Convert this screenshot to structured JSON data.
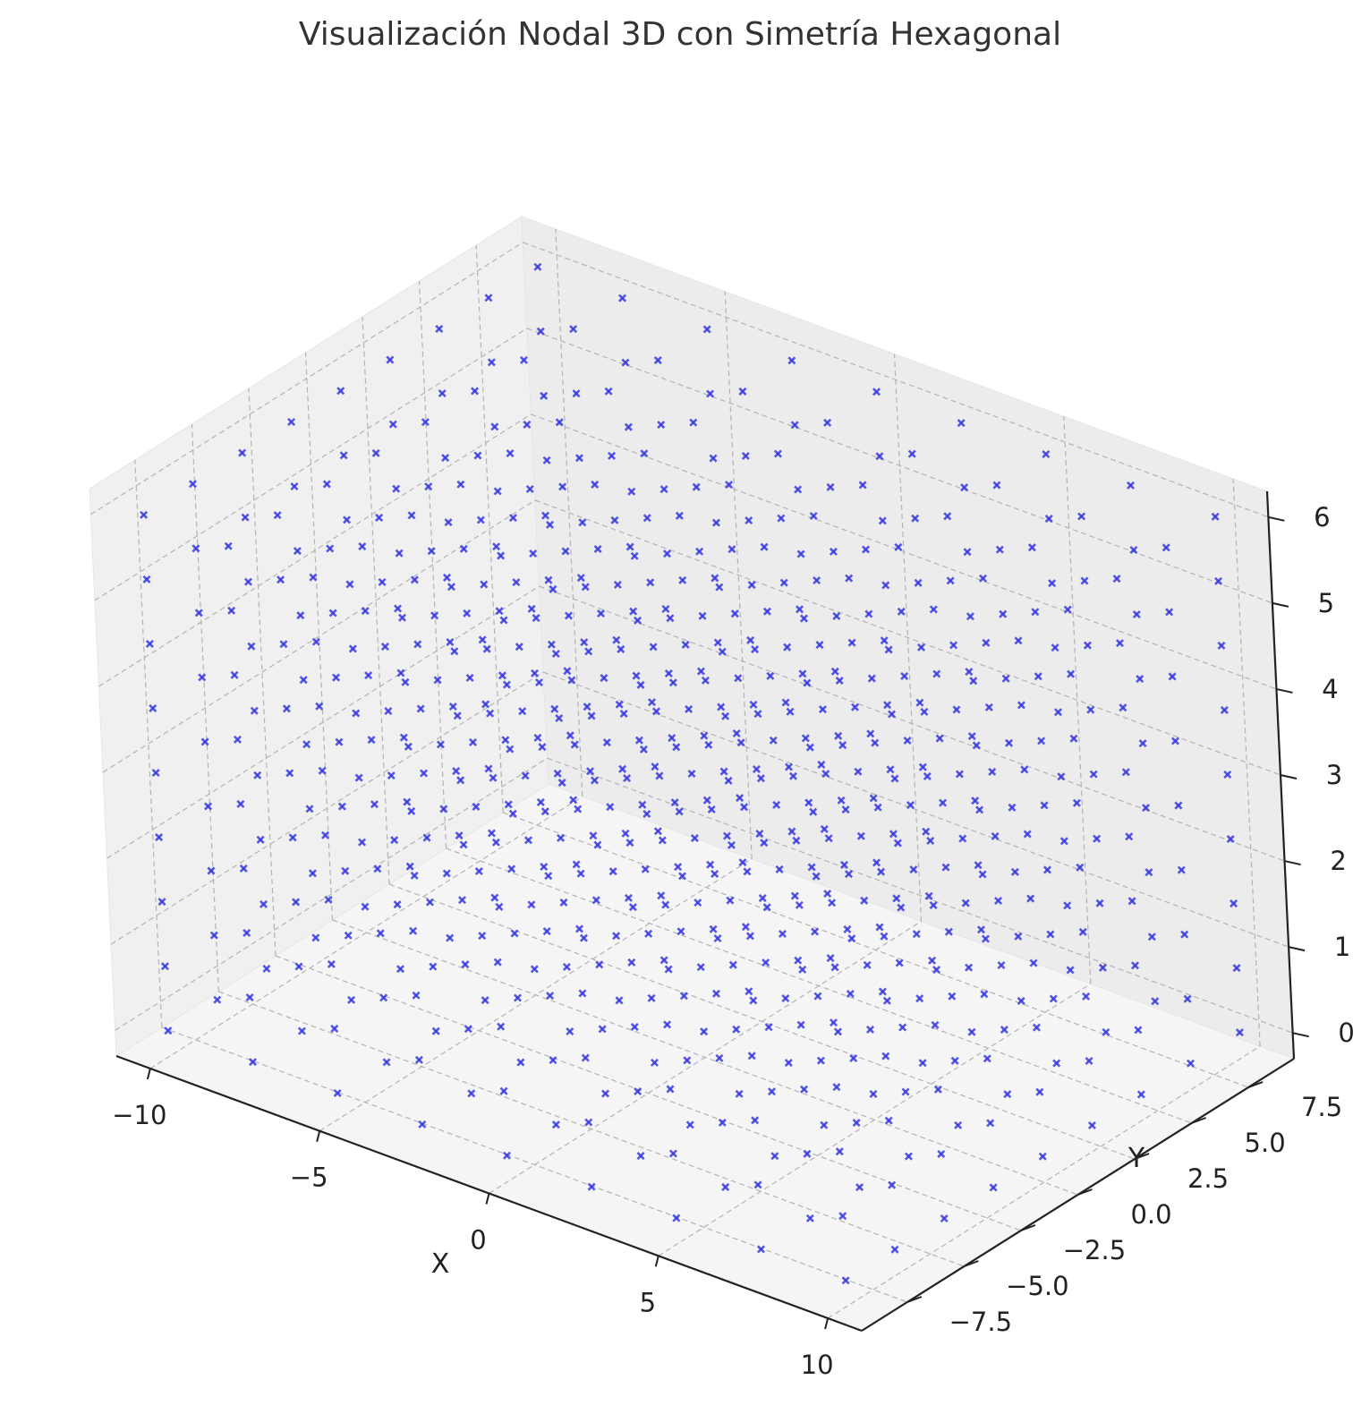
{
  "chart_data": {
    "type": "scatter",
    "projection": "3d",
    "title": "Visualización Nodal 3D con Simetría Hexagonal",
    "xlabel": "X",
    "ylabel": "Y",
    "zlabel": "",
    "xlim": [
      -11,
      11
    ],
    "ylim": [
      -9.5,
      9.5
    ],
    "zlim": [
      -0.3,
      6.3
    ],
    "x_ticks": [
      -10,
      -5,
      0,
      5,
      10
    ],
    "y_ticks": [
      -7.5,
      -5.0,
      -2.5,
      0.0,
      2.5,
      5.0,
      7.5
    ],
    "z_ticks": [
      0,
      1,
      2,
      3,
      4,
      5,
      6
    ],
    "x_tick_labels": [
      "−10",
      "−5",
      "0",
      "5",
      "10"
    ],
    "y_tick_labels": [
      "−7.5",
      "−5.0",
      "−2.5",
      "0.0",
      "2.5",
      "5.0",
      "7.5"
    ],
    "z_tick_labels": [
      "0",
      "1",
      "2",
      "3",
      "4",
      "5",
      "6"
    ],
    "grid": true,
    "marker": "x",
    "marker_color": "#3a3ae0",
    "pane_colors": [
      "#f0f0f0",
      "#ececec",
      "#f5f5f5"
    ],
    "series": [
      {
        "values": [],
        "grid_x": [
          -10,
          -7.5,
          -5,
          -2.5,
          0,
          2.5,
          5,
          7.5,
          10
        ],
        "grid_y": [
          -8.66,
          -6.5,
          -4.33,
          -2.17,
          0,
          2.17,
          4.33,
          6.5,
          8.66
        ],
        "grid_z": [
          0,
          0.75,
          1.5,
          2.25,
          3.0,
          3.75,
          4.5,
          5.25,
          6.0
        ]
      }
    ]
  }
}
